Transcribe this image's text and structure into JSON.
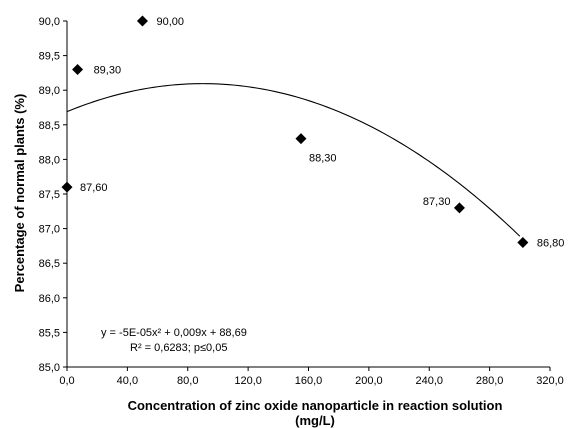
{
  "chart_data": {
    "type": "scatter",
    "title": "",
    "xlabel_lines": [
      "Concentration of zinc oxide nanoparticle in reaction solution",
      "(mg/L)"
    ],
    "ylabel": "Percentage of normal plants (%)",
    "xlim": [
      0,
      320
    ],
    "ylim": [
      85,
      90
    ],
    "x_ticks": [
      0,
      40,
      80,
      120,
      160,
      200,
      240,
      280,
      320
    ],
    "x_tick_labels": [
      "0,0",
      "40,0",
      "80,0",
      "120,0",
      "160,0",
      "200,0",
      "240,0",
      "280,0",
      "320,0"
    ],
    "y_ticks": [
      85,
      85.5,
      86,
      86.5,
      87,
      87.5,
      88,
      88.5,
      89,
      89.5,
      90
    ],
    "y_tick_labels": [
      "85,0",
      "85,5",
      "86,0",
      "86,5",
      "87,0",
      "87,5",
      "88,0",
      "88,5",
      "89,0",
      "89,5",
      "90,0"
    ],
    "grid": false,
    "points": [
      {
        "x": 0,
        "y": 87.6,
        "label": "87,60"
      },
      {
        "x": 7,
        "y": 89.3,
        "label": "89,30"
      },
      {
        "x": 50,
        "y": 90.0,
        "label": "90,00"
      },
      {
        "x": 155,
        "y": 88.3,
        "label": "88,30"
      },
      {
        "x": 260,
        "y": 87.3,
        "label": "87,30"
      },
      {
        "x": 302,
        "y": 86.8,
        "label": "86,80"
      }
    ],
    "trendline": {
      "type": "polynomial",
      "x_range": [
        0,
        300
      ],
      "equation": "y = -5E-05x² + 0,009x + 88,69",
      "r2_text": "R² = 0,6283; p≤0,05"
    }
  }
}
